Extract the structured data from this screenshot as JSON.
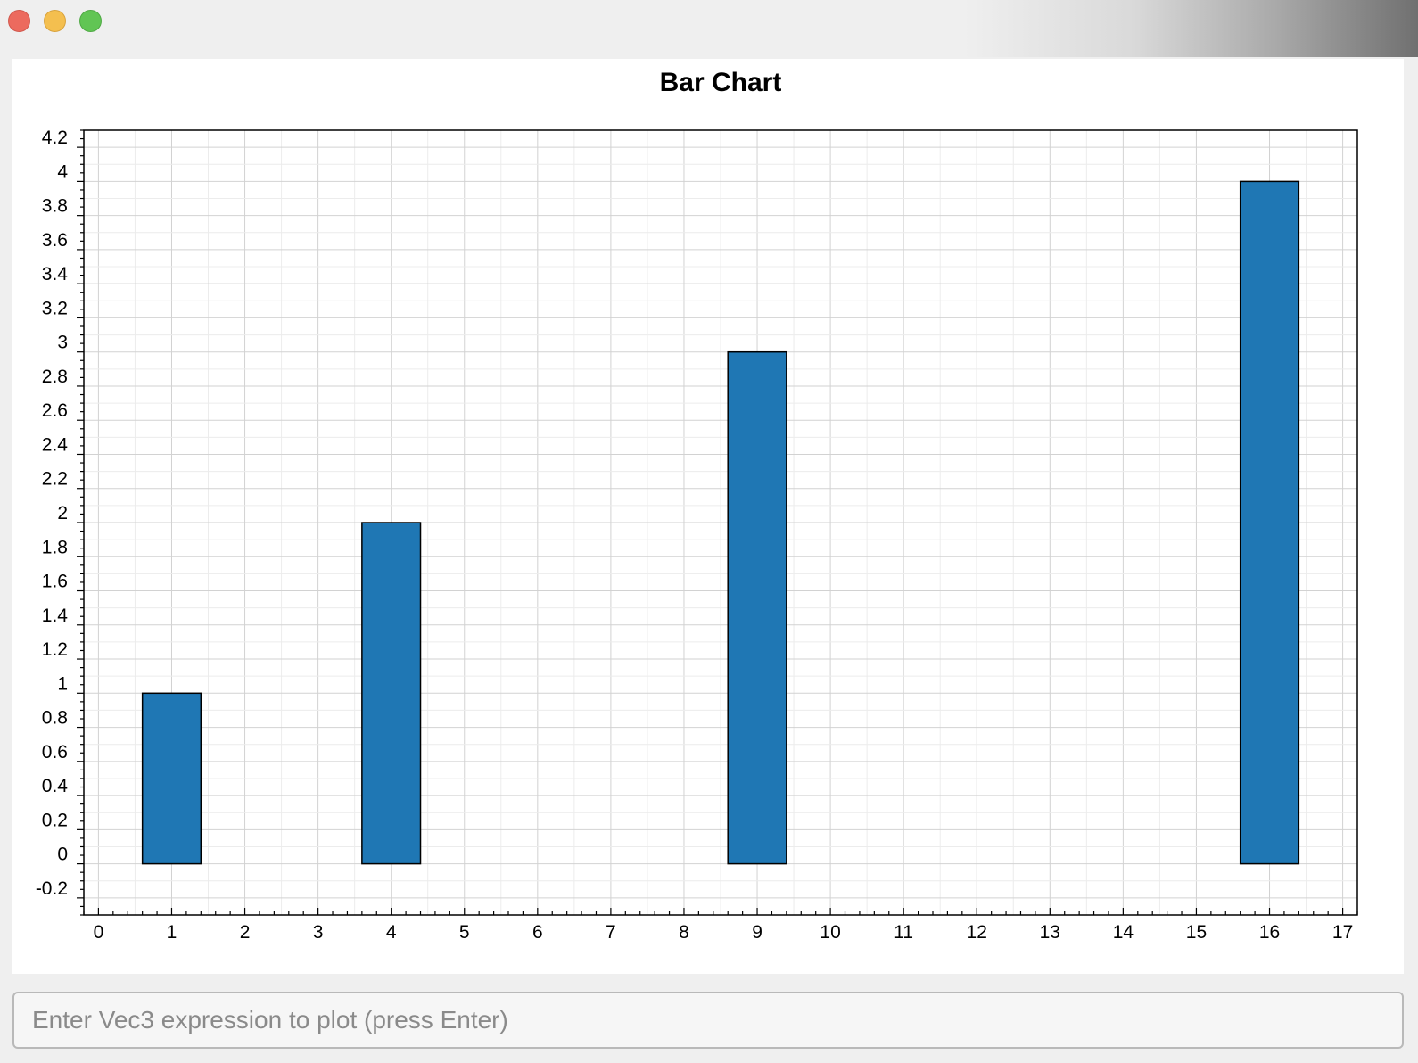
{
  "window": {
    "controls": [
      {
        "name": "close",
        "color": "#ec6a5e"
      },
      {
        "name": "minimize",
        "color": "#f4bf4f"
      },
      {
        "name": "maximize",
        "color": "#61c554"
      }
    ]
  },
  "chart_data": {
    "type": "bar",
    "title": "Bar Chart",
    "xlabel": "",
    "ylabel": "",
    "x": [
      1,
      4,
      9,
      16
    ],
    "values": [
      1,
      2,
      3,
      4
    ],
    "bar_width": 0.8,
    "xlim": [
      -0.2,
      17.2
    ],
    "ylim": [
      -0.3,
      4.3
    ],
    "xticks": [
      0,
      1,
      2,
      3,
      4,
      5,
      6,
      7,
      8,
      9,
      10,
      11,
      12,
      13,
      14,
      15,
      16,
      17
    ],
    "yticks": [
      -0.2,
      0,
      0.2,
      0.4,
      0.6,
      0.8,
      1,
      1.2,
      1.4,
      1.6,
      1.8,
      2,
      2.2,
      2.4,
      2.6,
      2.8,
      3,
      3.2,
      3.4,
      3.6,
      3.8,
      4,
      4.2
    ],
    "grid": true,
    "bar_color": "#1f77b4",
    "edge_color": "#000000"
  },
  "input": {
    "placeholder": "Enter Vec3 expression to plot (press Enter)",
    "value": ""
  }
}
